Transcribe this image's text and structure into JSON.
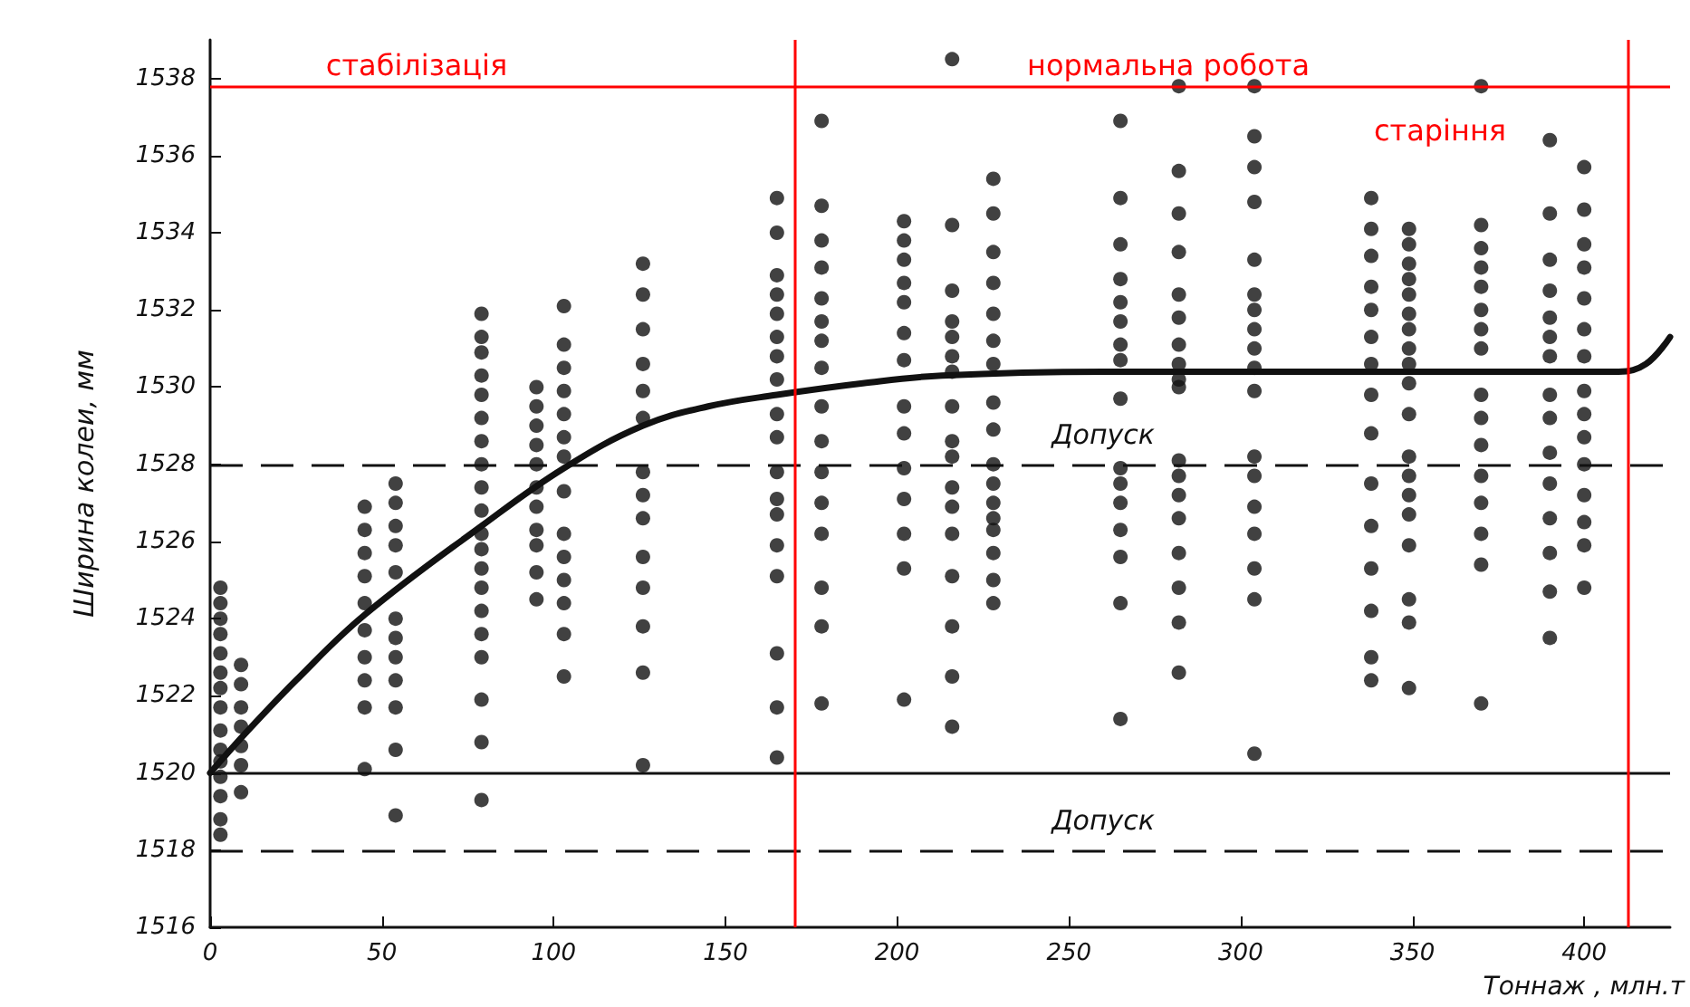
{
  "chart_data": {
    "type": "scatter",
    "xlabel": "Тоннаж , млн.т",
    "ylabel": "Ширина колеи, мм",
    "xlim": [
      0,
      425
    ],
    "xticks": [
      0,
      50,
      100,
      150,
      200,
      250,
      300,
      350,
      400
    ],
    "ylim": [
      1516,
      1539
    ],
    "yticks": [
      1516,
      1518,
      1520,
      1522,
      1524,
      1526,
      1528,
      1530,
      1532,
      1534,
      1536,
      1538
    ],
    "grid": false,
    "marker": "circle",
    "series": [
      {
        "type": "scatter",
        "color": "#111111",
        "x": [
          3,
          3,
          3,
          3,
          3,
          3,
          3,
          3,
          3,
          3,
          3,
          3,
          3,
          3,
          3
        ],
        "values": [
          1524.8,
          1524.4,
          1524.0,
          1523.6,
          1523.1,
          1522.6,
          1522.2,
          1521.7,
          1521.1,
          1520.6,
          1520.3,
          1519.9,
          1519.4,
          1518.8,
          1518.4
        ]
      },
      {
        "type": "scatter",
        "color": "#111111",
        "x": [
          9,
          9,
          9,
          9,
          9,
          9,
          9
        ],
        "values": [
          1522.8,
          1522.3,
          1521.7,
          1521.2,
          1520.7,
          1520.2,
          1519.5
        ]
      },
      {
        "type": "scatter",
        "color": "#111111",
        "x": [
          45,
          45,
          45,
          45,
          45,
          45,
          45,
          45,
          45,
          45
        ],
        "values": [
          1526.9,
          1526.3,
          1525.7,
          1525.1,
          1524.4,
          1523.7,
          1523.0,
          1522.4,
          1521.7,
          1520.1
        ]
      },
      {
        "type": "scatter",
        "color": "#111111",
        "x": [
          54,
          54,
          54,
          54,
          54,
          54,
          54,
          54,
          54,
          54,
          54,
          54
        ],
        "values": [
          1527.5,
          1527.0,
          1526.4,
          1525.9,
          1525.2,
          1524.0,
          1523.5,
          1523.0,
          1522.4,
          1521.7,
          1520.6,
          1518.9
        ]
      },
      {
        "type": "scatter",
        "color": "#111111",
        "x": [
          79,
          79,
          79,
          79,
          79,
          79,
          79,
          79,
          79,
          79,
          79,
          79,
          79,
          79,
          79,
          79,
          79,
          79,
          79,
          79
        ],
        "values": [
          1531.9,
          1531.3,
          1530.9,
          1530.3,
          1529.8,
          1529.2,
          1528.6,
          1528.0,
          1527.4,
          1526.8,
          1526.2,
          1525.8,
          1525.3,
          1524.8,
          1524.2,
          1523.6,
          1523.0,
          1521.9,
          1520.8,
          1519.3
        ]
      },
      {
        "type": "scatter",
        "color": "#111111",
        "x": [
          95,
          95,
          95,
          95,
          95,
          95,
          95,
          95,
          95,
          95,
          95
        ],
        "values": [
          1530.0,
          1529.5,
          1529.0,
          1528.5,
          1528.0,
          1527.4,
          1526.9,
          1526.3,
          1525.9,
          1525.2,
          1524.5
        ]
      },
      {
        "type": "scatter",
        "color": "#111111",
        "x": [
          103,
          103,
          103,
          103,
          103,
          103,
          103,
          103,
          103,
          103,
          103,
          103,
          103,
          103
        ],
        "values": [
          1532.1,
          1531.1,
          1530.5,
          1529.9,
          1529.3,
          1528.7,
          1528.2,
          1527.3,
          1526.2,
          1525.6,
          1525.0,
          1524.4,
          1523.6,
          1522.5
        ]
      },
      {
        "type": "scatter",
        "color": "#111111",
        "x": [
          126,
          126,
          126,
          126,
          126,
          126,
          126,
          126,
          126,
          126,
          126,
          126,
          126,
          126
        ],
        "values": [
          1533.2,
          1532.4,
          1531.5,
          1530.6,
          1529.9,
          1529.2,
          1527.8,
          1527.2,
          1526.6,
          1525.6,
          1524.8,
          1523.8,
          1522.6,
          1520.2
        ]
      },
      {
        "type": "scatter",
        "color": "#111111",
        "x": [
          165,
          165,
          165,
          165,
          165,
          165,
          165,
          165,
          165,
          165,
          165,
          165,
          165,
          165,
          165,
          165,
          165,
          165
        ],
        "values": [
          1534.9,
          1534.0,
          1532.9,
          1532.4,
          1531.9,
          1531.3,
          1530.8,
          1530.2,
          1529.3,
          1528.7,
          1527.8,
          1527.1,
          1526.7,
          1525.9,
          1525.1,
          1523.1,
          1521.7,
          1520.4
        ]
      },
      {
        "type": "scatter",
        "color": "#111111",
        "x": [
          178,
          178,
          178,
          178,
          178,
          178,
          178,
          178,
          178,
          178,
          178,
          178,
          178,
          178,
          178,
          178
        ],
        "values": [
          1536.9,
          1534.7,
          1533.8,
          1533.1,
          1532.3,
          1531.7,
          1531.2,
          1530.5,
          1529.5,
          1528.6,
          1527.8,
          1527.0,
          1526.2,
          1524.8,
          1523.8,
          1521.8
        ]
      },
      {
        "type": "scatter",
        "color": "#111111",
        "x": [
          202,
          202,
          202,
          202,
          202,
          202,
          202,
          202,
          202,
          202,
          202,
          202,
          202,
          202
        ],
        "values": [
          1534.3,
          1533.8,
          1533.3,
          1532.7,
          1532.2,
          1531.4,
          1530.7,
          1529.5,
          1528.8,
          1527.9,
          1527.1,
          1526.2,
          1525.3,
          1521.9
        ]
      },
      {
        "type": "scatter",
        "color": "#111111",
        "x": [
          216,
          216,
          216,
          216,
          216,
          216,
          216,
          216,
          216,
          216,
          216,
          216,
          216,
          216,
          216,
          216,
          216
        ],
        "values": [
          1538.5,
          1534.2,
          1532.5,
          1531.7,
          1531.3,
          1530.8,
          1530.4,
          1529.5,
          1528.6,
          1528.2,
          1527.4,
          1526.9,
          1526.2,
          1525.1,
          1523.8,
          1522.5,
          1521.2
        ]
      },
      {
        "type": "scatter",
        "color": "#111111",
        "x": [
          228,
          228,
          228,
          228,
          228,
          228,
          228,
          228,
          228,
          228,
          228,
          228,
          228,
          228,
          228,
          228,
          228
        ],
        "values": [
          1535.4,
          1534.5,
          1533.5,
          1532.7,
          1531.9,
          1531.2,
          1530.6,
          1529.6,
          1528.9,
          1528.0,
          1527.5,
          1527.0,
          1526.6,
          1526.3,
          1525.7,
          1525.0,
          1524.4
        ]
      },
      {
        "type": "scatter",
        "color": "#111111",
        "x": [
          265,
          265,
          265,
          265,
          265,
          265,
          265,
          265,
          265,
          265,
          265,
          265,
          265,
          265,
          265,
          265
        ],
        "values": [
          1536.9,
          1534.9,
          1533.7,
          1532.8,
          1532.2,
          1531.7,
          1531.1,
          1530.7,
          1529.7,
          1527.9,
          1527.5,
          1527.0,
          1526.3,
          1525.6,
          1524.4,
          1521.4
        ]
      },
      {
        "type": "scatter",
        "color": "#111111",
        "x": [
          282,
          282,
          282,
          282,
          282,
          282,
          282,
          282,
          282,
          282,
          282,
          282,
          282,
          282,
          282,
          282,
          282,
          282
        ],
        "values": [
          1537.8,
          1535.6,
          1534.5,
          1533.5,
          1532.4,
          1531.8,
          1531.1,
          1530.6,
          1530.2,
          1530.0,
          1528.1,
          1527.7,
          1527.2,
          1526.6,
          1525.7,
          1524.8,
          1523.9,
          1522.6
        ]
      },
      {
        "type": "scatter",
        "color": "#111111",
        "x": [
          304,
          304,
          304,
          304,
          304,
          304,
          304,
          304,
          304,
          304,
          304,
          304,
          304,
          304,
          304,
          304,
          304,
          304
        ],
        "values": [
          1537.8,
          1536.5,
          1535.7,
          1534.8,
          1533.3,
          1532.4,
          1532.0,
          1531.5,
          1531.0,
          1530.5,
          1529.9,
          1528.2,
          1527.7,
          1526.9,
          1526.2,
          1525.3,
          1524.5,
          1520.5
        ]
      },
      {
        "type": "scatter",
        "color": "#111111",
        "x": [
          338,
          338,
          338,
          338,
          338,
          338,
          338,
          338,
          338,
          338,
          338,
          338,
          338,
          338,
          338
        ],
        "values": [
          1534.9,
          1534.1,
          1533.4,
          1532.6,
          1532.0,
          1531.3,
          1530.6,
          1529.8,
          1528.8,
          1527.5,
          1526.4,
          1525.3,
          1524.2,
          1523.0,
          1522.4
        ]
      },
      {
        "type": "scatter",
        "color": "#111111",
        "x": [
          349,
          349,
          349,
          349,
          349,
          349,
          349,
          349,
          349,
          349,
          349,
          349,
          349,
          349,
          349,
          349,
          349,
          349,
          349
        ],
        "values": [
          1534.1,
          1533.7,
          1533.2,
          1532.8,
          1532.4,
          1531.9,
          1531.5,
          1531.0,
          1530.6,
          1530.1,
          1529.3,
          1528.2,
          1527.7,
          1527.2,
          1526.7,
          1525.9,
          1524.5,
          1523.9,
          1522.2
        ]
      },
      {
        "type": "scatter",
        "color": "#111111",
        "x": [
          370,
          370,
          370,
          370,
          370,
          370,
          370,
          370,
          370,
          370,
          370,
          370,
          370,
          370,
          370,
          370
        ],
        "values": [
          1537.8,
          1534.2,
          1533.6,
          1533.1,
          1532.6,
          1532.0,
          1531.5,
          1531.0,
          1529.8,
          1529.2,
          1528.5,
          1527.7,
          1527.0,
          1526.2,
          1525.4,
          1521.8
        ]
      },
      {
        "type": "scatter",
        "color": "#111111",
        "x": [
          390,
          390,
          390,
          390,
          390,
          390,
          390,
          390,
          390,
          390,
          390,
          390,
          390,
          390,
          390
        ],
        "values": [
          1536.4,
          1534.5,
          1533.3,
          1532.5,
          1531.8,
          1531.3,
          1530.8,
          1529.8,
          1529.2,
          1528.3,
          1527.5,
          1526.6,
          1525.7,
          1524.7,
          1523.5
        ]
      },
      {
        "type": "scatter",
        "color": "#111111",
        "x": [
          400,
          400,
          400,
          400,
          400,
          400,
          400,
          400,
          400,
          400,
          400,
          400,
          400,
          400,
          400
        ],
        "values": [
          1535.7,
          1534.6,
          1533.7,
          1533.1,
          1532.3,
          1531.5,
          1530.8,
          1529.9,
          1529.3,
          1528.7,
          1528.0,
          1527.2,
          1526.5,
          1525.9,
          1524.8
        ]
      },
      {
        "type": "line",
        "color": "#111111",
        "line_style": "solid",
        "marker": "none",
        "x": [
          0,
          10,
          25,
          45,
          79,
          103,
          126,
          145,
          165,
          190,
          213,
          260,
          410,
          418,
          425
        ],
        "values": [
          1520.0,
          1521.0,
          1522.4,
          1524.1,
          1526.4,
          1527.9,
          1529.0,
          1529.5,
          1529.8,
          1530.1,
          1530.3,
          1530.4,
          1530.4,
          1530.6,
          1531.3
        ]
      }
    ],
    "ref_lines": [
      {
        "axis": "y",
        "value": 1528,
        "label": "Допуск",
        "line_style": "dashed",
        "color": "#111111"
      },
      {
        "axis": "y",
        "value": 1520,
        "label": null,
        "line_style": "solid",
        "color": "#111111"
      },
      {
        "axis": "y",
        "value": 1518,
        "label": "Допуск",
        "line_style": "dashed",
        "color": "#111111"
      },
      {
        "axis": "y",
        "value": 1537.8,
        "label": null,
        "line_style": "solid",
        "color": "#ff0000"
      },
      {
        "axis": "x",
        "value": 170,
        "label": null,
        "line_style": "solid",
        "color": "#ff0000"
      },
      {
        "axis": "x",
        "value": 413,
        "label": null,
        "line_style": "solid",
        "color": "#ff0000"
      }
    ],
    "annotations": [
      "стабілізація",
      "нормальна робота",
      "старіння"
    ]
  }
}
